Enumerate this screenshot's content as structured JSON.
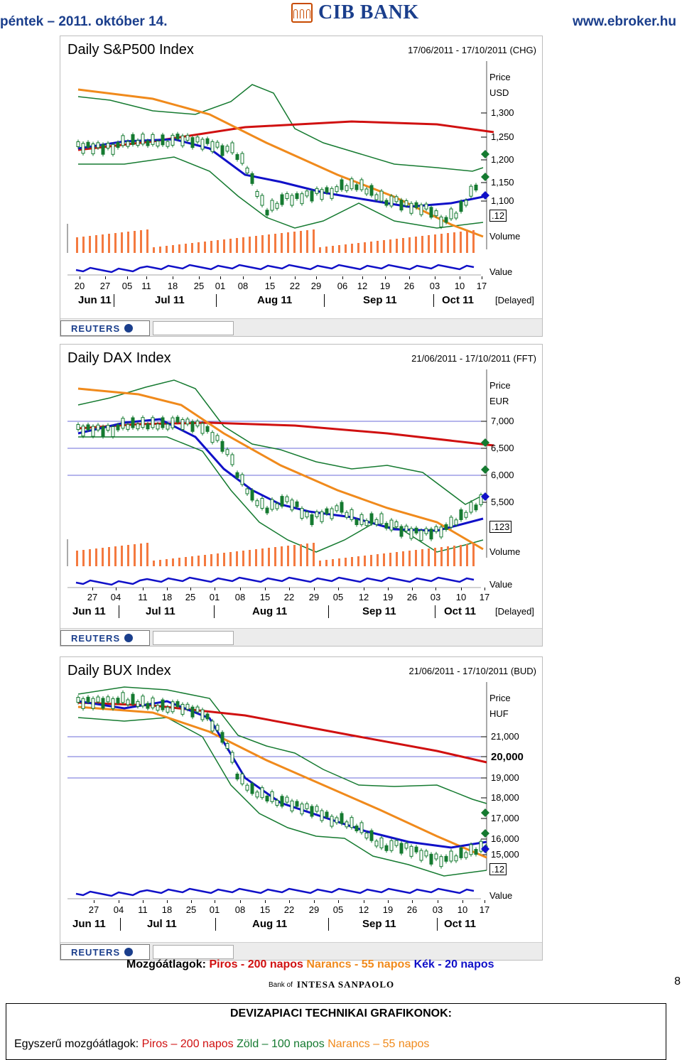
{
  "header": {
    "date": "péntek – 2011. október 14.",
    "brand": "CIB BANK",
    "url": "www.ebroker.hu"
  },
  "charts": [
    {
      "title": "Daily S&P500 Index",
      "range": "17/06/2011 - 17/10/2011 (CHG)",
      "price_label": "Price",
      "currency": "USD",
      "y_ticks": [
        "1,300",
        "1,250",
        "1,200",
        "1,150",
        "1,100"
      ],
      "ymarker": ".12",
      "volume_label": "Volume",
      "value_label": "Value",
      "x_days": [
        "20",
        "27",
        "05",
        "11",
        "18",
        "25",
        "01",
        "08",
        "15",
        "22",
        "29",
        "06",
        "12",
        "19",
        "26",
        "03",
        "10",
        "17"
      ],
      "x_months": [
        "Jun 11",
        "Jul 11",
        "Aug 11",
        "Sep 11",
        "Oct 11"
      ],
      "status": "[Delayed]"
    },
    {
      "title": "Daily DAX Index",
      "range": "21/06/2011 - 17/10/2011 (FFT)",
      "price_label": "Price",
      "currency": "EUR",
      "y_ticks": [
        "7,000",
        "6,500",
        "6,000",
        "5,500"
      ],
      "ymarker": ".123",
      "volume_label": "Volume",
      "value_label": "Value",
      "x_days": [
        "27",
        "04",
        "11",
        "18",
        "25",
        "01",
        "08",
        "15",
        "22",
        "29",
        "05",
        "12",
        "19",
        "26",
        "03",
        "10",
        "17"
      ],
      "x_months": [
        "Jun 11",
        "Jul 11",
        "Aug 11",
        "Sep 11",
        "Oct 11"
      ],
      "status": "[Delayed]"
    },
    {
      "title": "Daily BUX Index",
      "range": "21/06/2011 - 17/10/2011 (BUD)",
      "price_label": "Price",
      "currency": "HUF",
      "y_ticks": [
        "21,000",
        "20,000",
        "19,000",
        "18,000",
        "17,000",
        "16,000",
        "15,000"
      ],
      "ymarker": ".12",
      "volume_label": "",
      "value_label": "Value",
      "x_days": [
        "27",
        "04",
        "11",
        "18",
        "25",
        "01",
        "08",
        "15",
        "22",
        "29",
        "05",
        "12",
        "19",
        "26",
        "03",
        "10",
        "17"
      ],
      "x_months": [
        "Jun 11",
        "Jul 11",
        "Aug 11",
        "Sep 11",
        "Oct 11"
      ],
      "status": ""
    }
  ],
  "reuters_label": "REUTERS",
  "legend": {
    "prefix": "Mozgóátlagok:",
    "red": "Piros - 200 napos",
    "orange": "Narancs - 55 napos",
    "blue": "Kék - 20 napos"
  },
  "sponsor": {
    "prefix": "Bank of",
    "name": "INTESA SANPAOLO"
  },
  "page_number": "8",
  "footer": {
    "title": "DEVIZAPIACI TECHNIKAI GRAFIKONOK:",
    "prefix": "Egyszerű mozgóátlagok:",
    "red": "Piros – 200 napos",
    "green": "Zöld – 100 napos",
    "orange": "Narancs – 55 napos"
  },
  "colors": {
    "red": "#d01010",
    "orange": "#f08a1c",
    "blue": "#1010c8",
    "green": "#157a30",
    "volume": "#f47a40",
    "header": "#1a3e8c"
  }
}
